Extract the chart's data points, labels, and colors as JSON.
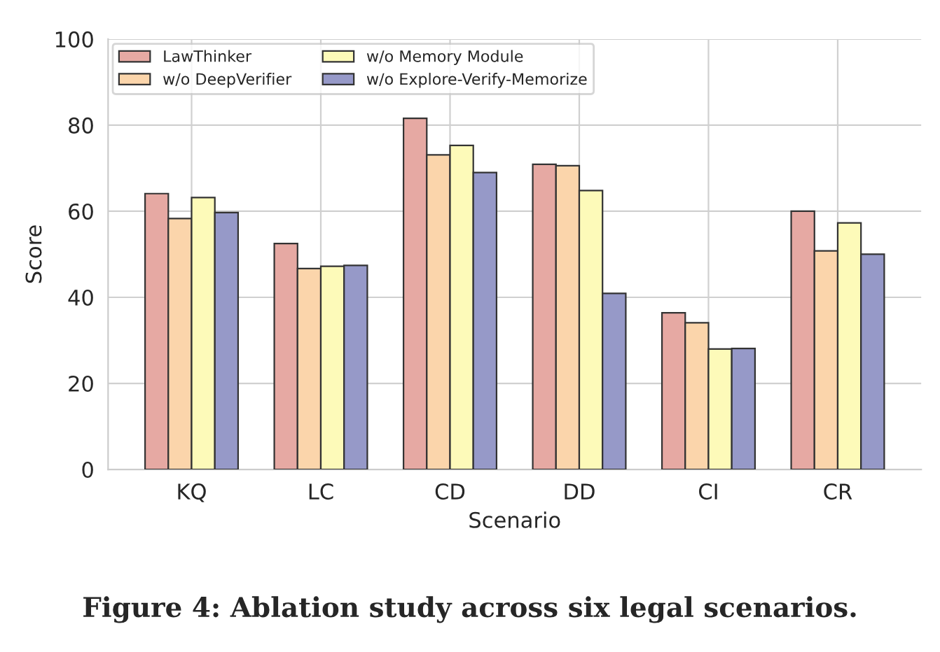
{
  "chart_data": {
    "type": "bar",
    "xlabel": "Scenario",
    "ylabel": "Score",
    "categories": [
      "KQ",
      "LC",
      "CD",
      "DD",
      "CI",
      "CR"
    ],
    "series": [
      {
        "name": "LawThinker",
        "color": "#e6a9a3",
        "values": [
          64.1,
          52.5,
          81.6,
          70.9,
          36.4,
          60.0
        ]
      },
      {
        "name": "w/o DeepVerifier",
        "color": "#fbd5ab",
        "values": [
          58.3,
          46.7,
          73.1,
          70.6,
          34.1,
          50.8
        ]
      },
      {
        "name": "w/o Memory Module",
        "color": "#fdfab9",
        "values": [
          63.2,
          47.2,
          75.3,
          64.8,
          28.0,
          57.3
        ]
      },
      {
        "name": "w/o Explore-Verify-Memorize",
        "color": "#9699c8",
        "values": [
          59.7,
          47.4,
          69.0,
          40.9,
          28.1,
          50.0
        ]
      }
    ],
    "ylim": [
      0,
      100
    ],
    "yticks": [
      0,
      20,
      40,
      60,
      80,
      100
    ],
    "grid": true,
    "legend": "top left",
    "annotations": [
      "Figure 4: Ablation study across six legal scenarios."
    ]
  }
}
